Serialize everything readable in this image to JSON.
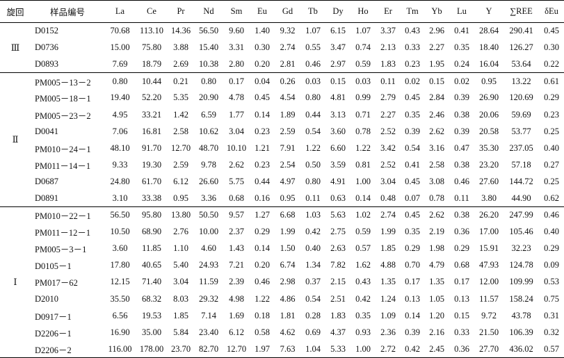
{
  "headers": [
    "旋回",
    "样品编号",
    "La",
    "Ce",
    "Pr",
    "Nd",
    "Sm",
    "Eu",
    "Gd",
    "Tb",
    "Dy",
    "Ho",
    "Er",
    "Tm",
    "Yb",
    "Lu",
    "Y",
    "∑REE",
    "δEu"
  ],
  "groups": [
    {
      "label": "Ⅲ",
      "rows": [
        {
          "id": "D0152",
          "v": [
            "70.68",
            "113.10",
            "14.36",
            "56.50",
            "9.60",
            "1.40",
            "9.32",
            "1.07",
            "6.15",
            "1.07",
            "3.37",
            "0.43",
            "2.96",
            "0.41",
            "28.64",
            "290.41",
            "0.45"
          ]
        },
        {
          "id": "D0736",
          "v": [
            "15.00",
            "75.80",
            "3.88",
            "15.40",
            "3.31",
            "0.30",
            "2.74",
            "0.55",
            "3.47",
            "0.74",
            "2.13",
            "0.33",
            "2.27",
            "0.35",
            "18.40",
            "126.27",
            "0.30"
          ]
        },
        {
          "id": "D0893",
          "v": [
            "7.69",
            "18.79",
            "2.69",
            "10.38",
            "2.80",
            "0.20",
            "2.81",
            "0.46",
            "2.97",
            "0.59",
            "1.83",
            "0.23",
            "1.95",
            "0.24",
            "16.04",
            "53.64",
            "0.22"
          ]
        }
      ]
    },
    {
      "label": "Ⅱ",
      "rows": [
        {
          "id": "PM005－13－2",
          "v": [
            "0.80",
            "10.44",
            "0.21",
            "0.80",
            "0.17",
            "0.04",
            "0.26",
            "0.03",
            "0.15",
            "0.03",
            "0.11",
            "0.02",
            "0.15",
            "0.02",
            "0.95",
            "13.22",
            "0.61"
          ]
        },
        {
          "id": "PM005－18－1",
          "v": [
            "19.40",
            "52.20",
            "5.35",
            "20.90",
            "4.78",
            "0.45",
            "4.54",
            "0.80",
            "4.81",
            "0.99",
            "2.79",
            "0.45",
            "2.84",
            "0.39",
            "26.90",
            "120.69",
            "0.29"
          ]
        },
        {
          "id": "PM005－23－2",
          "v": [
            "4.95",
            "33.21",
            "1.42",
            "6.59",
            "1.77",
            "0.14",
            "1.89",
            "0.44",
            "3.13",
            "0.71",
            "2.27",
            "0.35",
            "2.46",
            "0.38",
            "20.06",
            "59.69",
            "0.23"
          ]
        },
        {
          "id": "D0041",
          "v": [
            "7.06",
            "16.81",
            "2.58",
            "10.62",
            "3.04",
            "0.23",
            "2.59",
            "0.54",
            "3.60",
            "0.78",
            "2.52",
            "0.39",
            "2.62",
            "0.39",
            "20.58",
            "53.77",
            "0.25"
          ]
        },
        {
          "id": "PM010－24－1",
          "v": [
            "48.10",
            "91.70",
            "12.70",
            "48.70",
            "10.10",
            "1.21",
            "7.91",
            "1.22",
            "6.60",
            "1.22",
            "3.42",
            "0.54",
            "3.16",
            "0.47",
            "35.30",
            "237.05",
            "0.40"
          ]
        },
        {
          "id": "PM011－14－1",
          "v": [
            "9.33",
            "19.30",
            "2.59",
            "9.78",
            "2.62",
            "0.23",
            "2.54",
            "0.50",
            "3.59",
            "0.81",
            "2.52",
            "0.41",
            "2.58",
            "0.38",
            "23.20",
            "57.18",
            "0.27"
          ]
        },
        {
          "id": "D0687",
          "v": [
            "24.80",
            "61.70",
            "6.12",
            "26.60",
            "5.75",
            "0.44",
            "4.97",
            "0.80",
            "4.91",
            "1.00",
            "3.04",
            "0.45",
            "3.08",
            "0.46",
            "27.60",
            "144.72",
            "0.25"
          ]
        },
        {
          "id": "D0891",
          "v": [
            "3.10",
            "33.38",
            "0.95",
            "3.36",
            "0.68",
            "0.16",
            "0.95",
            "0.11",
            "0.63",
            "0.14",
            "0.48",
            "0.07",
            "0.78",
            "0.11",
            "3.80",
            "44.90",
            "0.62"
          ]
        }
      ]
    },
    {
      "label": "Ⅰ",
      "rows": [
        {
          "id": "PM010－22－1",
          "v": [
            "56.50",
            "95.80",
            "13.80",
            "50.50",
            "9.57",
            "1.27",
            "6.68",
            "1.03",
            "5.63",
            "1.02",
            "2.74",
            "0.45",
            "2.62",
            "0.38",
            "26.20",
            "247.99",
            "0.46"
          ]
        },
        {
          "id": "PM011－12－1",
          "v": [
            "10.50",
            "68.90",
            "2.76",
            "10.00",
            "2.37",
            "0.29",
            "1.99",
            "0.42",
            "2.75",
            "0.59",
            "1.99",
            "0.35",
            "2.19",
            "0.36",
            "17.00",
            "105.46",
            "0.40"
          ]
        },
        {
          "id": "PM005－3－1",
          "v": [
            "3.60",
            "11.85",
            "1.10",
            "4.60",
            "1.43",
            "0.14",
            "1.50",
            "0.40",
            "2.63",
            "0.57",
            "1.85",
            "0.29",
            "1.98",
            "0.29",
            "15.91",
            "32.23",
            "0.29"
          ]
        },
        {
          "id": "D0105－1",
          "v": [
            "17.80",
            "40.65",
            "5.40",
            "24.93",
            "7.21",
            "0.20",
            "6.74",
            "1.34",
            "7.82",
            "1.62",
            "4.88",
            "0.70",
            "4.79",
            "0.68",
            "47.93",
            "124.78",
            "0.09"
          ]
        },
        {
          "id": "PM017－62",
          "v": [
            "12.15",
            "71.40",
            "3.04",
            "11.59",
            "2.39",
            "0.46",
            "2.98",
            "0.37",
            "2.15",
            "0.43",
            "1.35",
            "0.17",
            "1.35",
            "0.17",
            "12.00",
            "109.99",
            "0.53"
          ]
        },
        {
          "id": "D2010",
          "v": [
            "35.50",
            "68.32",
            "8.03",
            "29.32",
            "4.98",
            "1.22",
            "4.86",
            "0.54",
            "2.51",
            "0.42",
            "1.24",
            "0.13",
            "1.05",
            "0.13",
            "11.57",
            "158.24",
            "0.75"
          ]
        },
        {
          "id": "D0917－1",
          "v": [
            "6.56",
            "19.53",
            "1.85",
            "7.14",
            "1.69",
            "0.18",
            "1.81",
            "0.28",
            "1.83",
            "0.35",
            "1.09",
            "0.14",
            "1.20",
            "0.15",
            "9.72",
            "43.78",
            "0.31"
          ]
        },
        {
          "id": "D2206－1",
          "v": [
            "16.90",
            "35.00",
            "5.84",
            "23.40",
            "6.12",
            "0.58",
            "4.62",
            "0.69",
            "4.37",
            "0.93",
            "2.36",
            "0.39",
            "2.16",
            "0.33",
            "21.50",
            "106.39",
            "0.32"
          ]
        },
        {
          "id": "D2206－2",
          "v": [
            "116.00",
            "178.00",
            "23.70",
            "82.70",
            "12.70",
            "1.97",
            "7.63",
            "1.04",
            "5.33",
            "1.00",
            "2.72",
            "0.42",
            "2.45",
            "0.36",
            "27.70",
            "436.02",
            "0.57"
          ]
        }
      ]
    }
  ]
}
